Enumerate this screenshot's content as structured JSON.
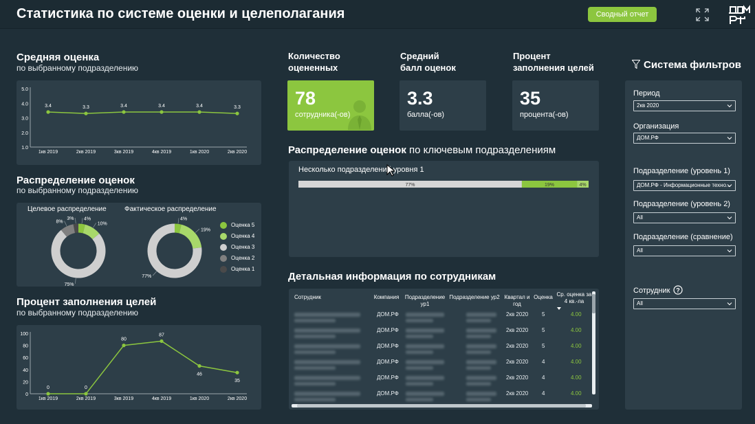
{
  "app": {
    "title": "Статистика по системе оценки и целеполагания",
    "report_button": "Сводный отчет"
  },
  "avg_score": {
    "title": "Средняя оценка",
    "subtitle": "по выбранному подразделению"
  },
  "distribution": {
    "title": "Распределение оценок",
    "subtitle": "по выбранному подразделению",
    "target_label": "Целевое распределение",
    "actual_label": "Фактическое распределение",
    "legend": [
      "Оценка 5",
      "Оценка 4",
      "Оценка 3",
      "Оценка 2",
      "Оценка 1"
    ],
    "legend_colors": [
      "#8cc63f",
      "#a8d86a",
      "#cfcfcf",
      "#808080",
      "#4a4a4a"
    ]
  },
  "goals": {
    "title": "Процент заполнения целей",
    "subtitle": "по выбранному подразделению"
  },
  "kpi": {
    "count_head": "Количество\nоцененных",
    "count_value": "78",
    "count_unit": "сотрудника(-ов)",
    "avg_head": "Средний\nбалл оценок",
    "avg_value": "3.3",
    "avg_unit": "балла(-ов)",
    "pct_head": "Процент\nзаполнения целей",
    "pct_value": "35",
    "pct_unit": "процента(-ов)"
  },
  "key_dist": {
    "title_bold": "Распределение оценок",
    "title_rest": " по ключевым подразделениям",
    "row_label": "Несколько подразделений уровня 1",
    "segments": [
      {
        "label": "77%",
        "value": 77,
        "color": "#d6d6d6"
      },
      {
        "label": "19%",
        "value": 19,
        "color": "#8cc63f"
      },
      {
        "label": "4%",
        "value": 4,
        "color": "#a8d86a"
      }
    ]
  },
  "details": {
    "title": "Детальная информация по сотрудникам",
    "headers": [
      "Сотрудник",
      "Компания",
      "Подразделение ур1",
      "Подразделение ур2",
      "Квартал и год",
      "Оценка",
      "Ср. оценка за 4 кв.-ла"
    ],
    "rows": [
      {
        "company": "ДОМ.РФ",
        "quarter": "2кв 2020",
        "score": "5",
        "avg": "4.00"
      },
      {
        "company": "ДОМ.РФ",
        "quarter": "2кв 2020",
        "score": "5",
        "avg": "4.00"
      },
      {
        "company": "ДОМ.РФ",
        "quarter": "2кв 2020",
        "score": "5",
        "avg": "4.00"
      },
      {
        "company": "ДОМ.РФ",
        "quarter": "2кв 2020",
        "score": "4",
        "avg": "4.00"
      },
      {
        "company": "ДОМ.РФ",
        "quarter": "2кв 2020",
        "score": "4",
        "avg": "4.00"
      },
      {
        "company": "ДОМ.РФ",
        "quarter": "2кв 2020",
        "score": "4",
        "avg": "4.00"
      }
    ]
  },
  "filters": {
    "title": "Система фильтров",
    "period_label": "Период",
    "period_value": "2кв 2020",
    "org_label": "Организация",
    "org_value": "ДОМ.РФ",
    "dept1_label": "Подразделение (уровень 1)",
    "dept1_value": "ДОМ.РФ - Информационные техно...",
    "dept2_label": "Подразделение (уровень 2)",
    "dept2_value": "All",
    "cmp_label": "Подразделение (сравнение)",
    "cmp_value": "All",
    "emp_label": "Сотрудник",
    "emp_value": "All"
  },
  "chart_data": [
    {
      "type": "line",
      "title": "Средняя оценка",
      "categories": [
        "1кв 2019",
        "2кв 2019",
        "3кв 2019",
        "4кв 2019",
        "1кв 2020",
        "2кв 2020"
      ],
      "values": [
        3.4,
        3.3,
        3.4,
        3.4,
        3.4,
        3.3
      ],
      "ylim": [
        1.0,
        5.0
      ],
      "yticks": [
        "1.0",
        "2.0",
        "3.0",
        "4.0",
        "5.0"
      ],
      "grid": false
    },
    {
      "type": "pie",
      "title": "Целевое распределение",
      "series": [
        {
          "name": "Оценка 5",
          "value": 4
        },
        {
          "name": "Оценка 4",
          "value": 10
        },
        {
          "name": "Оценка 3",
          "value": 75
        },
        {
          "name": "Оценка 2",
          "value": 8
        },
        {
          "name": "Оценка 1",
          "value": 3
        }
      ],
      "labels": [
        "4%",
        "10%",
        "75%",
        "8%",
        "3%"
      ]
    },
    {
      "type": "pie",
      "title": "Фактическое распределение",
      "series": [
        {
          "name": "Оценка 5",
          "value": 4
        },
        {
          "name": "Оценка 4",
          "value": 19
        },
        {
          "name": "Оценка 3",
          "value": 77
        }
      ],
      "labels": [
        "4%",
        "19%",
        "77%"
      ]
    },
    {
      "type": "line",
      "title": "Процент заполнения целей",
      "categories": [
        "1кв 2019",
        "2кв 2019",
        "3кв 2019",
        "4кв 2019",
        "1кв 2020",
        "2кв 2020"
      ],
      "values": [
        0,
        0,
        80,
        87,
        46,
        35
      ],
      "ylim": [
        0,
        100
      ],
      "yticks": [
        "0",
        "20",
        "40",
        "60",
        "80",
        "100"
      ],
      "grid": false
    },
    {
      "type": "bar",
      "title": "Распределение оценок по ключевым подразделениям",
      "categories": [
        "Несколько подразделений уровня 1"
      ],
      "series": [
        {
          "name": "Оценка 3",
          "values": [
            77
          ]
        },
        {
          "name": "Оценка 4",
          "values": [
            19
          ]
        },
        {
          "name": "Оценка 5",
          "values": [
            4
          ]
        }
      ]
    }
  ]
}
